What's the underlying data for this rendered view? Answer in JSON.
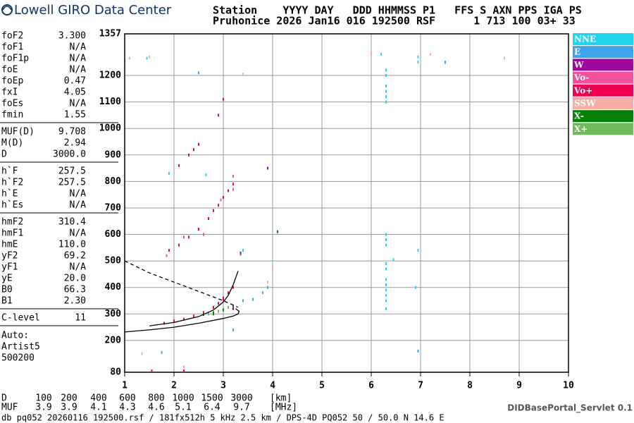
{
  "logo": "Lowell GIRO Data Center",
  "header": {
    "line1": "Station    YYYY DAY   DDD HHMMSS P1   FFS S AXN PPS IGA PS",
    "line2": "Pruhonice 2026 Jan16 016 192500 RSF      1 713 100 03+ 33"
  },
  "parameter_groups": [
    [
      [
        "foF2",
        "3.300"
      ],
      [
        "foF1",
        "N/A"
      ],
      [
        "foF1p",
        "N/A"
      ],
      [
        "foE",
        "N/A"
      ],
      [
        "foEp",
        "0.47"
      ],
      [
        "fxI",
        "4.05"
      ],
      [
        "foEs",
        "N/A"
      ],
      [
        "fmin",
        "1.55"
      ]
    ],
    [
      [
        "MUF(D)",
        "9.708"
      ],
      [
        "M(D)",
        "2.94"
      ],
      [
        "D",
        "3000.0"
      ]
    ],
    [
      [
        "h`F",
        "257.5"
      ],
      [
        "h`F2",
        "257.5"
      ],
      [
        "h`E",
        "N/A"
      ],
      [
        "h`Es",
        "N/A"
      ]
    ],
    [
      [
        "hmF2",
        "310.4"
      ],
      [
        "hmF1",
        "N/A"
      ],
      [
        "hmE",
        "110.0"
      ],
      [
        "yF2",
        "69.2"
      ],
      [
        "yF1",
        "N/A"
      ],
      [
        "yE",
        "20.0"
      ],
      [
        "B0",
        "66.3"
      ],
      [
        "B1",
        "2.30"
      ]
    ],
    [
      [
        "C-level",
        "11"
      ]
    ]
  ],
  "auto": [
    "Auto:",
    "Artist5",
    "500200"
  ],
  "chart_data": {
    "type": "scatter",
    "xlim": [
      1,
      10
    ],
    "ylim": [
      80,
      1357
    ],
    "xticks": [
      1,
      2,
      3,
      4,
      5,
      6,
      7,
      8,
      9,
      10
    ],
    "yticks": [
      80,
      200,
      300,
      400,
      500,
      600,
      700,
      800,
      900,
      1000,
      1100,
      1200,
      1357
    ],
    "grid": true,
    "legend": "right",
    "series": [
      {
        "name": "NNE",
        "color": "#1fd3ec",
        "x": [
          6.3,
          6.3,
          6.3,
          6.3,
          6.3,
          6.3,
          6.3,
          6.3,
          6.3,
          6.3,
          6.3,
          6.3,
          6.3,
          6.3,
          6.3,
          6.3,
          6.3,
          6.95,
          6.95,
          7.5,
          6.45,
          6.95,
          1.9,
          2.65,
          3.4,
          6.2,
          6.9,
          1.45
        ],
        "y": [
          1100,
          1120,
          1140,
          1160,
          1200,
          1220,
          580,
          600,
          560,
          490,
          470,
          430,
          410,
          390,
          370,
          350,
          320,
          1250,
          1270,
          1250,
          505,
          540,
          830,
          825,
          540,
          1280,
          400,
          1265
        ]
      },
      {
        "name": "E",
        "color": "#3fa4ef",
        "x": [
          3.4,
          3.6,
          3.8,
          3.9,
          1.75,
          2.5,
          7.5,
          6.95,
          3.2,
          3.35
        ],
        "y": [
          350,
          355,
          380,
          400,
          155,
          1210,
          1250,
          160,
          240,
          525
        ]
      },
      {
        "name": "W",
        "color": "#a0059e",
        "x": [
          3.0,
          3.2,
          3.9,
          3.35
        ],
        "y": [
          355,
          320,
          850,
          530
        ]
      },
      {
        "name": "Vo-",
        "color": "#f0509c",
        "x": [
          1.85,
          2.2,
          3.2,
          3.2,
          2.0,
          2.6,
          2.95
        ],
        "y": [
          520,
          590,
          770,
          820,
          275,
          600,
          730
        ]
      },
      {
        "name": "Vo+",
        "color": "#ef0050",
        "x": [
          1.8,
          2.0,
          2.2,
          2.4,
          2.6,
          2.8,
          2.9,
          3.0,
          3.1,
          3.2,
          1.9,
          2.1,
          2.3,
          2.5,
          2.7,
          2.8,
          2.9,
          3.0,
          3.1,
          3.2,
          2.1,
          2.3,
          2.4,
          2.5,
          2.9,
          3.0,
          1.55,
          2.2
        ],
        "y": [
          265,
          272,
          280,
          292,
          305,
          325,
          340,
          360,
          380,
          400,
          540,
          560,
          590,
          620,
          660,
          690,
          710,
          740,
          765,
          790,
          860,
          900,
          920,
          940,
          1050,
          1110,
          85,
          85
        ]
      },
      {
        "name": "SSW",
        "color": "#f5ada5",
        "x": [
          3.9,
          4.0,
          8.7,
          7.2,
          1.1,
          1.5,
          6.0,
          3.4,
          1.35,
          2.2
        ],
        "y": [
          420,
          470,
          1265,
          1280,
          1265,
          1270,
          1280,
          1205,
          150,
          100
        ]
      },
      {
        "name": "X-",
        "color": "#078007",
        "x": [
          2.6,
          2.8,
          3.0,
          3.2,
          4.1,
          2.8
        ],
        "y": [
          298,
          305,
          315,
          330,
          610,
          300
        ]
      },
      {
        "name": "X+",
        "color": "#72b85d",
        "x": [
          2.7,
          2.9,
          3.1
        ],
        "y": [
          300,
          310,
          325
        ]
      }
    ],
    "curves": [
      {
        "x": [
          1.5,
          2.0,
          2.5,
          2.8,
          3.0,
          3.1,
          3.2,
          3.3
        ],
        "y": [
          255,
          268,
          290,
          315,
          345,
          370,
          410,
          462
        ],
        "dash": false
      },
      {
        "x": [
          1.0,
          1.5,
          2.0,
          2.5,
          3.0,
          3.2,
          3.3,
          3.32,
          3.25
        ],
        "y": [
          232,
          240,
          250,
          265,
          283,
          292,
          300,
          310,
          320
        ],
        "dash": false
      },
      {
        "x": [
          1.0,
          1.5,
          2.0,
          2.5,
          3.0,
          3.3
        ],
        "y": [
          500,
          455,
          420,
          385,
          350,
          325
        ],
        "dash": true
      }
    ]
  },
  "muf_table": {
    "rows": [
      [
        "D",
        100,
        200,
        400,
        600,
        800,
        1000,
        1500,
        3000,
        "[km]"
      ],
      [
        "MUF",
        3.9,
        3.9,
        4.1,
        4.3,
        4.6,
        5.1,
        6.4,
        9.7,
        "[MHz]"
      ]
    ]
  },
  "footer": "db pq052 20260116 192500.rsf / 181fx512h 5 kHz 2.5 km / DPS-4D PQ052 50 / 50.0 N 14.6 E",
  "servlet": "DIDBasePortal_Servlet 0.1"
}
